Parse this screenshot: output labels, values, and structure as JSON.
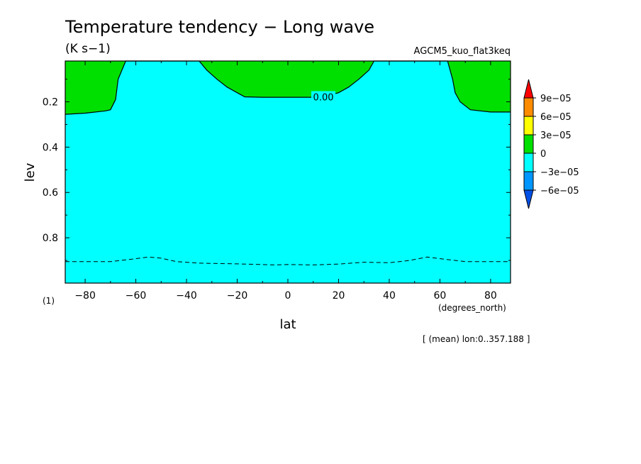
{
  "chart_data": {
    "type": "heatmap",
    "title": "Temperature tendency − Long wave",
    "units": "(K s−1)",
    "run_name": "AGCM5_kuo_flat3keq",
    "xlabel": "lat",
    "xunits": "(degrees_north)",
    "ylabel": "lev",
    "yunits": "(1)",
    "footnote": "[ (mean) lon:0..357.188 ]",
    "xlim": [
      -87.86,
      87.86
    ],
    "ylim": [
      1.0,
      0.02
    ],
    "x_ticks": [
      -80,
      -60,
      -40,
      -20,
      0,
      20,
      40,
      60,
      80
    ],
    "x_tick_labels": [
      "−80",
      "−60",
      "−40",
      "−20",
      "0",
      "20",
      "40",
      "60",
      "80"
    ],
    "y_ticks": [
      0.2,
      0.4,
      0.6,
      0.8
    ],
    "y_tick_labels": [
      "0.2",
      "0.4",
      "0.6",
      "0.8"
    ],
    "colorbar": {
      "labels": [
        "9e−05",
        "6e−05",
        "3e−05",
        "0",
        "−3e−05",
        "−6e−05"
      ],
      "bins": [
        {
          "color": "#ff0000",
          "range": "> 9e-05"
        },
        {
          "color": "#ff8c00",
          "range": "6e-05 to 9e-05"
        },
        {
          "color": "#ffff00",
          "range": "3e-05 to 6e-05"
        },
        {
          "color": "#00e000",
          "range": "0 to 3e-05"
        },
        {
          "color": "#00ffff",
          "range": "-3e-05 to 0"
        },
        {
          "color": "#0096ff",
          "range": "-6e-05 to -3e-05"
        },
        {
          "color": "#0050e6",
          "range": "< -6e-05"
        }
      ]
    },
    "background_fill": {
      "color": "#00ffff",
      "range": "-3e-05 to 0"
    },
    "positive_region": {
      "color": "#00e000",
      "range": "0 to 3e-05",
      "boundary": [
        [
          -87.86,
          0.255
        ],
        [
          -80,
          0.25
        ],
        [
          -72,
          0.24
        ],
        [
          -70,
          0.235
        ],
        [
          -68,
          0.19
        ],
        [
          -67,
          0.1
        ],
        [
          -64,
          0.02
        ],
        [
          -35,
          0.02
        ],
        [
          -32,
          0.06
        ],
        [
          -28,
          0.1
        ],
        [
          -24,
          0.135
        ],
        [
          -20,
          0.16
        ],
        [
          -17,
          0.178
        ],
        [
          -10,
          0.18
        ],
        [
          0,
          0.18
        ],
        [
          10,
          0.18
        ],
        [
          14,
          0.178
        ],
        [
          20,
          0.16
        ],
        [
          24,
          0.135
        ],
        [
          28,
          0.1
        ],
        [
          32,
          0.06
        ],
        [
          34,
          0.02
        ],
        [
          63,
          0.02
        ],
        [
          65,
          0.1
        ],
        [
          66,
          0.16
        ],
        [
          68,
          0.2
        ],
        [
          72,
          0.235
        ],
        [
          80,
          0.245
        ],
        [
          87.86,
          0.245
        ]
      ]
    },
    "contour_label": {
      "text": "0.00",
      "x": 14,
      "y": 0.178
    },
    "dashed_contour": [
      [
        -87.86,
        0.905
      ],
      [
        -70,
        0.905
      ],
      [
        -62,
        0.895
      ],
      [
        -55,
        0.885
      ],
      [
        -50,
        0.89
      ],
      [
        -44,
        0.905
      ],
      [
        -35,
        0.912
      ],
      [
        -20,
        0.915
      ],
      [
        -5,
        0.92
      ],
      [
        0,
        0.918
      ],
      [
        10,
        0.92
      ],
      [
        20,
        0.916
      ],
      [
        30,
        0.908
      ],
      [
        40,
        0.91
      ],
      [
        48,
        0.9
      ],
      [
        55,
        0.885
      ],
      [
        62,
        0.895
      ],
      [
        70,
        0.905
      ],
      [
        87.86,
        0.905
      ]
    ]
  }
}
